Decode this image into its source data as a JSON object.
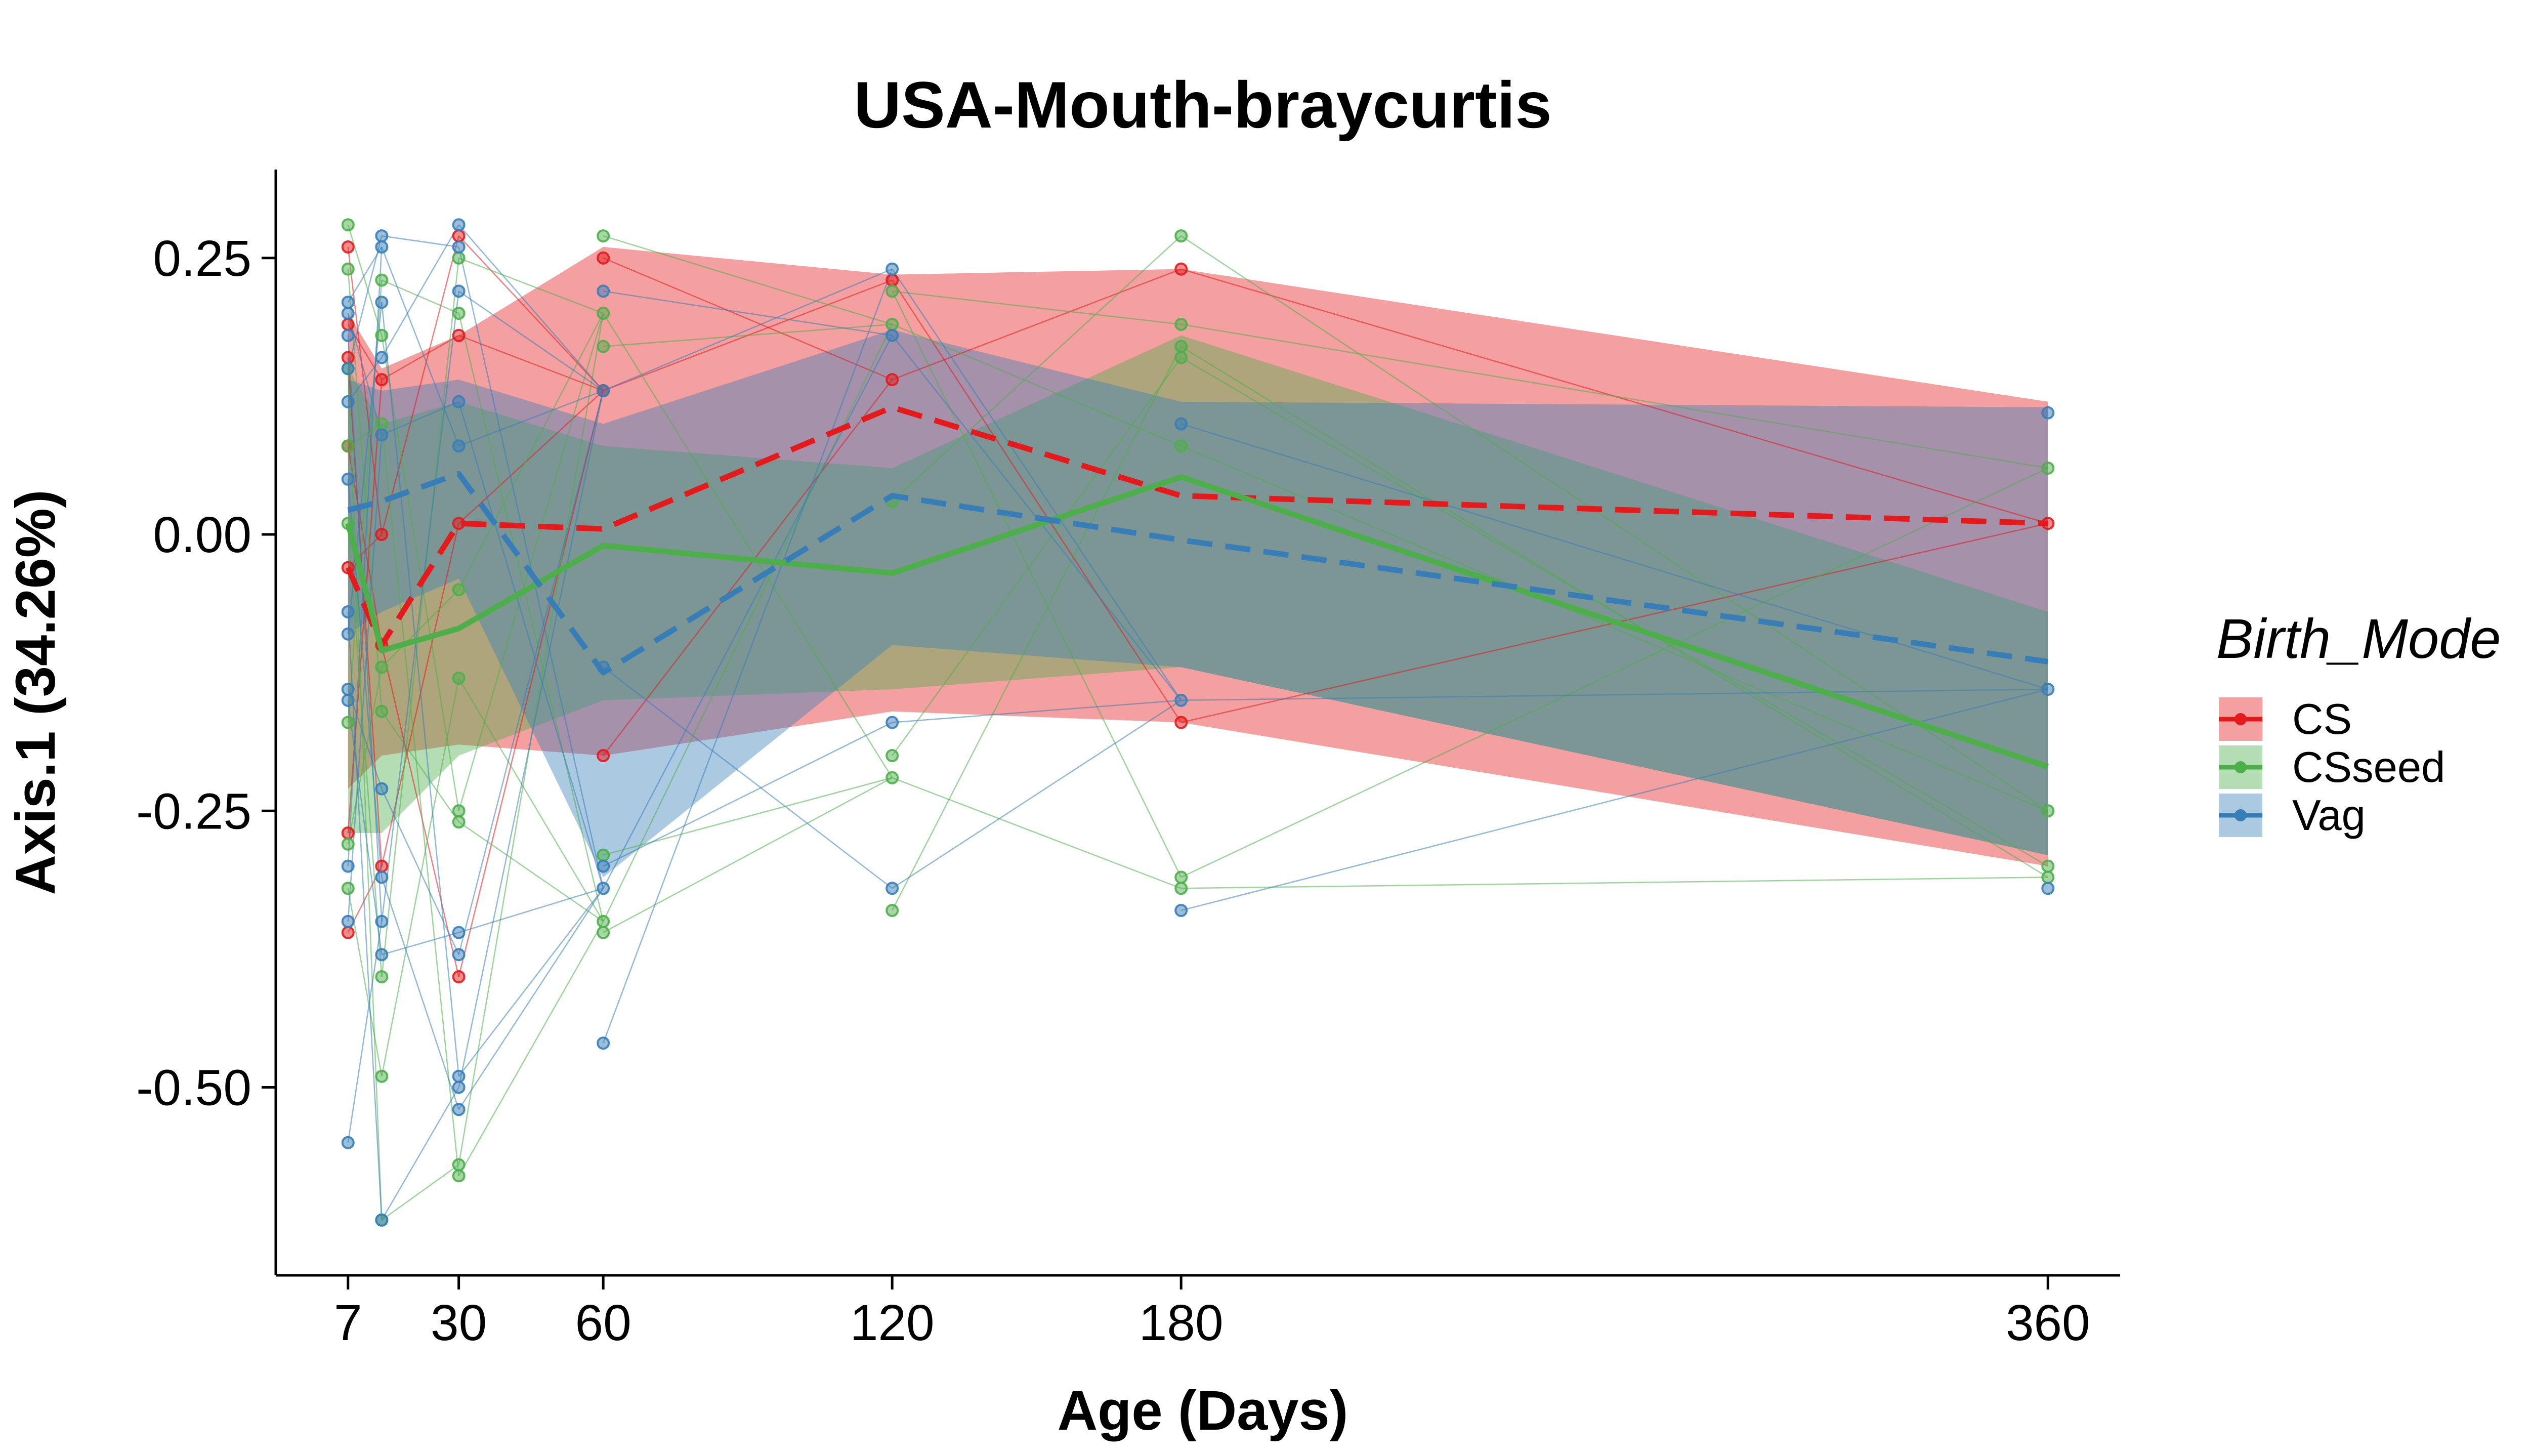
{
  "chart_data": {
    "type": "line",
    "title": "USA-Mouth-braycurtis",
    "xlabel": "Age (Days)",
    "ylabel": "Axis.1 (34.26%)",
    "xlim": [
      -8,
      375
    ],
    "ylim": [
      -0.67,
      0.33
    ],
    "x_ticks": [
      7,
      30,
      60,
      120,
      180,
      360
    ],
    "x_tick_labels": [
      "7",
      "30",
      "60",
      "120",
      "180",
      "360"
    ],
    "y_ticks": [
      0.25,
      0.0,
      -0.25,
      -0.5
    ],
    "y_tick_labels": [
      "0.25",
      "0.00",
      "-0.25",
      "-0.50"
    ],
    "grid": false,
    "legend": {
      "title": "Birth_Mode",
      "placement": "right",
      "entries": [
        "CS",
        "CSseed",
        "Vag"
      ]
    },
    "colors": {
      "CS": "#e41a1c",
      "CSseed": "#4daf4a",
      "Vag": "#377eb8"
    },
    "series": [
      {
        "name": "CS",
        "linestyle": "dashed",
        "mean": [
          [
            7,
            -0.03
          ],
          [
            14,
            -0.1
          ],
          [
            30,
            0.01
          ],
          [
            60,
            0.005
          ],
          [
            120,
            0.115
          ],
          [
            180,
            0.035
          ],
          [
            360,
            0.01
          ]
        ],
        "upper": [
          [
            7,
            0.2
          ],
          [
            14,
            0.15
          ],
          [
            30,
            0.18
          ],
          [
            60,
            0.26
          ],
          [
            120,
            0.235
          ],
          [
            180,
            0.24
          ],
          [
            360,
            0.12
          ]
        ],
        "lower": [
          [
            7,
            -0.23
          ],
          [
            14,
            -0.2
          ],
          [
            30,
            -0.19
          ],
          [
            60,
            -0.2
          ],
          [
            120,
            -0.16
          ],
          [
            180,
            -0.17
          ],
          [
            360,
            -0.3
          ]
        ],
        "points": [
          [
            7,
            0.26
          ],
          [
            7,
            0.19
          ],
          [
            7,
            0.16
          ],
          [
            7,
            0.08
          ],
          [
            7,
            -0.03
          ],
          [
            7,
            -0.27
          ],
          [
            7,
            -0.36
          ],
          [
            14,
            0.14
          ],
          [
            14,
            0.0
          ],
          [
            14,
            -0.1
          ],
          [
            14,
            -0.3
          ],
          [
            30,
            0.27
          ],
          [
            30,
            0.18
          ],
          [
            30,
            0.01
          ],
          [
            30,
            -0.4
          ],
          [
            60,
            0.25
          ],
          [
            60,
            0.13
          ],
          [
            60,
            -0.2
          ],
          [
            120,
            0.23
          ],
          [
            120,
            0.14
          ],
          [
            180,
            0.24
          ],
          [
            180,
            -0.17
          ],
          [
            360,
            0.01
          ]
        ]
      },
      {
        "name": "CSseed",
        "linestyle": "solid",
        "mean": [
          [
            7,
            0.01
          ],
          [
            14,
            -0.105
          ],
          [
            30,
            -0.085
          ],
          [
            60,
            -0.01
          ],
          [
            120,
            -0.035
          ],
          [
            180,
            0.052
          ],
          [
            360,
            -0.21
          ]
        ],
        "upper": [
          [
            7,
            0.15
          ],
          [
            14,
            0.1
          ],
          [
            30,
            0.12
          ],
          [
            60,
            0.08
          ],
          [
            120,
            0.06
          ],
          [
            180,
            0.18
          ],
          [
            360,
            -0.07
          ]
        ],
        "lower": [
          [
            7,
            -0.27
          ],
          [
            14,
            -0.27
          ],
          [
            30,
            -0.2
          ],
          [
            60,
            -0.15
          ],
          [
            120,
            -0.14
          ],
          [
            180,
            -0.12
          ],
          [
            360,
            -0.29
          ]
        ],
        "points": [
          [
            7,
            0.28
          ],
          [
            7,
            0.24
          ],
          [
            7,
            0.15
          ],
          [
            7,
            0.08
          ],
          [
            7,
            0.01
          ],
          [
            7,
            -0.17
          ],
          [
            7,
            -0.28
          ],
          [
            7,
            -0.32
          ],
          [
            14,
            0.23
          ],
          [
            14,
            0.18
          ],
          [
            14,
            0.1
          ],
          [
            14,
            -0.12
          ],
          [
            14,
            -0.16
          ],
          [
            14,
            -0.4
          ],
          [
            14,
            -0.49
          ],
          [
            14,
            -0.62
          ],
          [
            30,
            0.25
          ],
          [
            30,
            0.2
          ],
          [
            30,
            -0.05
          ],
          [
            30,
            -0.13
          ],
          [
            30,
            -0.25
          ],
          [
            30,
            -0.26
          ],
          [
            30,
            -0.57
          ],
          [
            30,
            -0.58
          ],
          [
            60,
            0.27
          ],
          [
            60,
            0.2
          ],
          [
            60,
            0.17
          ],
          [
            60,
            -0.29
          ],
          [
            60,
            -0.35
          ],
          [
            60,
            -0.36
          ],
          [
            120,
            0.22
          ],
          [
            120,
            0.19
          ],
          [
            120,
            0.03
          ],
          [
            120,
            -0.2
          ],
          [
            120,
            -0.22
          ],
          [
            120,
            -0.34
          ],
          [
            180,
            0.27
          ],
          [
            180,
            0.19
          ],
          [
            180,
            0.17
          ],
          [
            180,
            0.16
          ],
          [
            180,
            0.08
          ],
          [
            180,
            -0.31
          ],
          [
            180,
            -0.32
          ],
          [
            360,
            0.06
          ],
          [
            360,
            -0.25
          ],
          [
            360,
            -0.3
          ],
          [
            360,
            -0.31
          ]
        ]
      },
      {
        "name": "Vag",
        "linestyle": "dashed",
        "mean": [
          [
            7,
            0.022
          ],
          [
            14,
            0.03
          ],
          [
            30,
            0.055
          ],
          [
            60,
            -0.125
          ],
          [
            120,
            0.035
          ],
          [
            180,
            -0.005
          ],
          [
            360,
            -0.115
          ]
        ],
        "upper": [
          [
            7,
            0.14
          ],
          [
            14,
            0.13
          ],
          [
            30,
            0.14
          ],
          [
            60,
            0.1
          ],
          [
            120,
            0.185
          ],
          [
            180,
            0.12
          ],
          [
            360,
            0.115
          ]
        ],
        "lower": [
          [
            7,
            -0.09
          ],
          [
            14,
            -0.07
          ],
          [
            30,
            -0.04
          ],
          [
            60,
            -0.31
          ],
          [
            120,
            -0.1
          ],
          [
            180,
            -0.12
          ],
          [
            360,
            -0.29
          ]
        ],
        "points": [
          [
            7,
            0.21
          ],
          [
            7,
            0.2
          ],
          [
            7,
            0.18
          ],
          [
            7,
            0.15
          ],
          [
            7,
            0.12
          ],
          [
            7,
            0.05
          ],
          [
            7,
            -0.07
          ],
          [
            7,
            -0.09
          ],
          [
            7,
            -0.14
          ],
          [
            7,
            -0.15
          ],
          [
            7,
            -0.3
          ],
          [
            7,
            -0.35
          ],
          [
            7,
            -0.55
          ],
          [
            14,
            0.27
          ],
          [
            14,
            0.26
          ],
          [
            14,
            0.21
          ],
          [
            14,
            0.16
          ],
          [
            14,
            0.09
          ],
          [
            14,
            -0.23
          ],
          [
            14,
            -0.31
          ],
          [
            14,
            -0.35
          ],
          [
            14,
            -0.38
          ],
          [
            14,
            -0.62
          ],
          [
            30,
            0.28
          ],
          [
            30,
            0.26
          ],
          [
            30,
            0.22
          ],
          [
            30,
            0.12
          ],
          [
            30,
            0.08
          ],
          [
            30,
            -0.36
          ],
          [
            30,
            -0.38
          ],
          [
            30,
            -0.49
          ],
          [
            30,
            -0.5
          ],
          [
            30,
            -0.52
          ],
          [
            60,
            0.22
          ],
          [
            60,
            0.13
          ],
          [
            60,
            -0.12
          ],
          [
            60,
            -0.3
          ],
          [
            60,
            -0.32
          ],
          [
            60,
            -0.46
          ],
          [
            120,
            0.24
          ],
          [
            120,
            0.18
          ],
          [
            120,
            -0.17
          ],
          [
            120,
            -0.32
          ],
          [
            180,
            0.1
          ],
          [
            180,
            -0.15
          ],
          [
            180,
            -0.34
          ],
          [
            360,
            0.11
          ],
          [
            360,
            -0.14
          ],
          [
            360,
            -0.32
          ]
        ]
      }
    ]
  }
}
